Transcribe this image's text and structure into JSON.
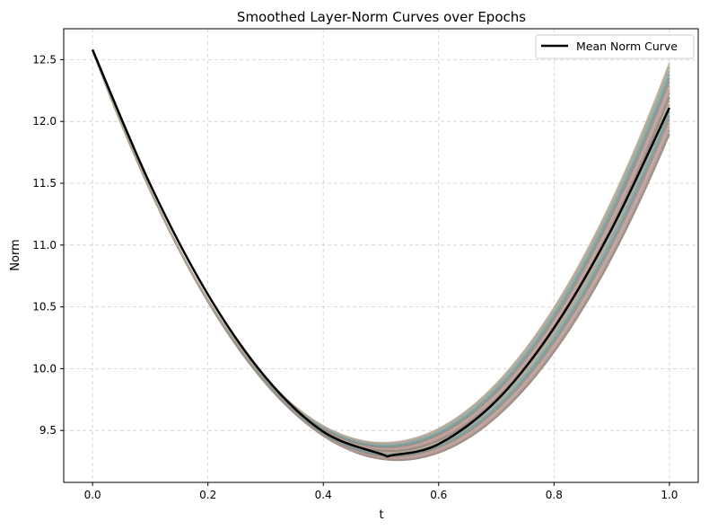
{
  "chart_data": {
    "type": "line",
    "title": "Smoothed Layer-Norm Curves over Epochs",
    "xlabel": "t",
    "ylabel": "Norm",
    "xlim": [
      -0.05,
      1.05
    ],
    "ylim": [
      9.08,
      12.75
    ],
    "xticks": [
      0.0,
      0.2,
      0.4,
      0.6,
      0.8,
      1.0
    ],
    "xtick_labels": [
      "0.0",
      "0.2",
      "0.4",
      "0.6",
      "0.8",
      "1.0"
    ],
    "yticks": [
      9.5,
      10.0,
      10.5,
      11.0,
      11.5,
      12.0,
      12.5
    ],
    "ytick_labels": [
      "9.5",
      "10.0",
      "10.5",
      "11.0",
      "11.5",
      "12.0",
      "12.5"
    ],
    "grid": true,
    "legend": {
      "position": "top-right",
      "entries": [
        "Mean Norm Curve"
      ]
    },
    "band": {
      "description_count": 20,
      "start": 12.58,
      "end_min": 11.9,
      "end_max": 12.47,
      "min_low": 9.26,
      "min_high": 9.4,
      "colors": [
        "#8c7b70",
        "#a08f88",
        "#b49a95",
        "#c79e9a",
        "#9d8a7e",
        "#7f8f8a",
        "#6f9b9b",
        "#8da5a0",
        "#a3a396",
        "#b5a48f"
      ]
    },
    "series": [
      {
        "name": "Mean Norm Curve",
        "color": "#000000",
        "points": [
          [
            0.0,
            12.58
          ],
          [
            0.1,
            11.49
          ],
          [
            0.2,
            10.6
          ],
          [
            0.3,
            9.93
          ],
          [
            0.4,
            9.49
          ],
          [
            0.5,
            9.31
          ],
          [
            0.52,
            9.3
          ],
          [
            0.6,
            9.39
          ],
          [
            0.7,
            9.74
          ],
          [
            0.8,
            10.33
          ],
          [
            0.9,
            11.13
          ],
          [
            1.0,
            12.11
          ]
        ]
      }
    ]
  }
}
